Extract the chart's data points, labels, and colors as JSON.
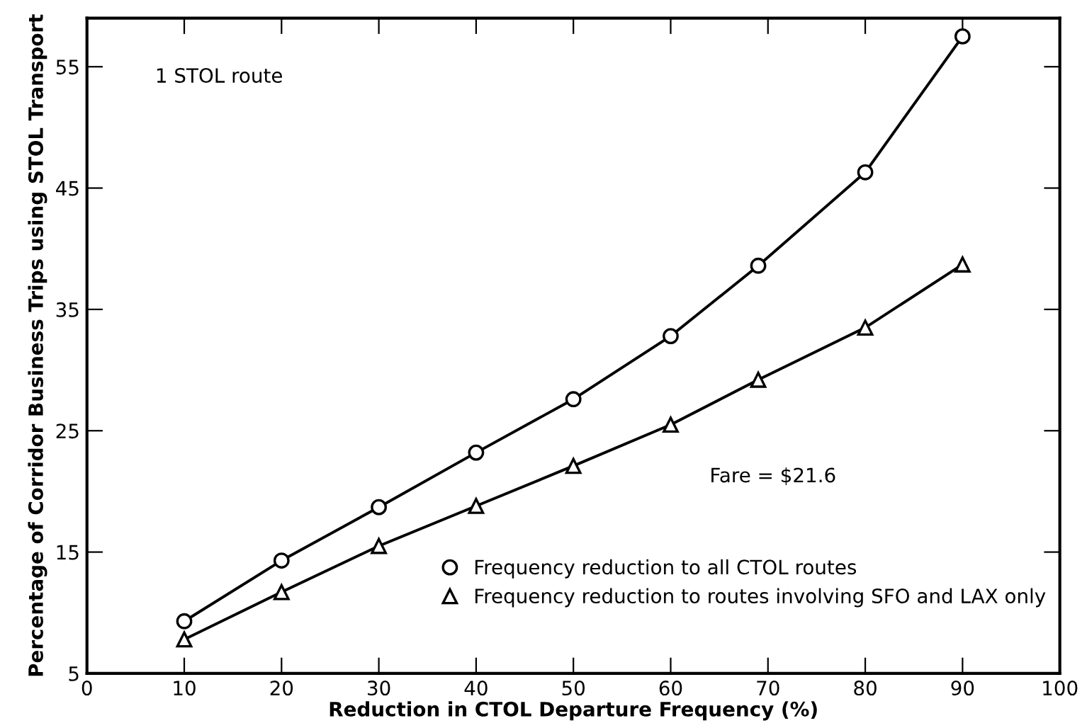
{
  "chart_data": {
    "type": "line",
    "xlabel": "Reduction in CTOL Departure Frequency (%)",
    "ylabel": "Percentage of Corridor Business Trips using STOL Transport",
    "annotations": [
      "1 STOL route",
      "Fare = $21.6"
    ],
    "xlim": [
      0,
      100
    ],
    "xticks": [
      0,
      10,
      20,
      30,
      40,
      50,
      60,
      70,
      80,
      90,
      100
    ],
    "ylim": [
      5,
      59
    ],
    "yticks": [
      5,
      15,
      25,
      35,
      45,
      55
    ],
    "grid": false,
    "legend": "bottom right",
    "series": [
      {
        "name": "Frequency reduction to all CTOL routes",
        "color": "#000000",
        "marker": "circle",
        "x": [
          10,
          20,
          30,
          40,
          50,
          60,
          69,
          80,
          90
        ],
        "values": [
          9.3,
          14.3,
          18.7,
          23.2,
          27.6,
          32.8,
          38.6,
          46.3,
          57.5
        ]
      },
      {
        "name": "Frequency reduction to routes involving SFO and LAX only",
        "color": "#000000",
        "marker": "triangle",
        "x": [
          10,
          20,
          30,
          40,
          50,
          60,
          69,
          80,
          90
        ],
        "values": [
          7.8,
          11.7,
          15.5,
          18.8,
          22.1,
          25.5,
          29.2,
          33.5,
          38.7
        ]
      }
    ]
  }
}
